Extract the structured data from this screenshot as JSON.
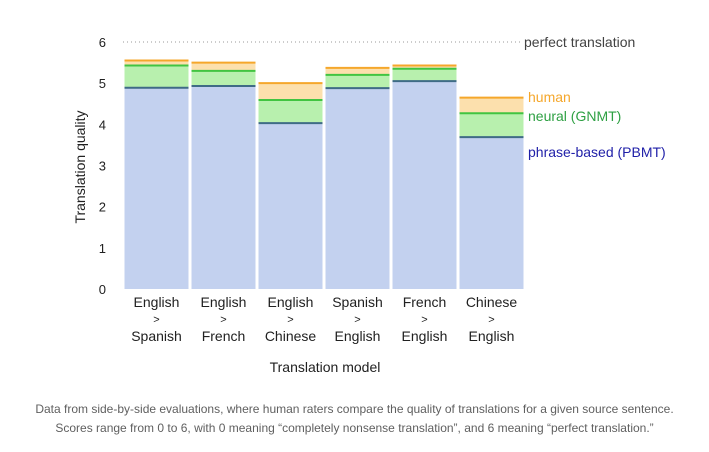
{
  "chart_data": {
    "type": "bar",
    "title": "",
    "xlabel": "Translation model",
    "ylabel": "Translation quality",
    "ylim": [
      0,
      6
    ],
    "yticks": [
      "0",
      "1",
      "2",
      "3",
      "4",
      "5",
      "6"
    ],
    "grid": false,
    "categories": [
      [
        "English",
        ">",
        "Spanish"
      ],
      [
        "English",
        ">",
        "French"
      ],
      [
        "English",
        ">",
        "Chinese"
      ],
      [
        "Spanish",
        ">",
        "English"
      ],
      [
        "French",
        ">",
        "English"
      ],
      [
        "Chinese",
        ">",
        "English"
      ]
    ],
    "series": [
      {
        "name": "phrase-based (PBMT)",
        "values": [
          4.89,
          4.93,
          4.03,
          4.88,
          5.05,
          3.69
        ],
        "fill": "#c3d1ef",
        "line": "#3f6b86",
        "label_color": "#1f1fa8"
      },
      {
        "name": "neural (GNMT)",
        "values": [
          5.43,
          5.3,
          4.59,
          5.2,
          5.35,
          4.27
        ],
        "fill": "#b8f0ae",
        "line": "#41c441",
        "label_color": "#2ea043"
      },
      {
        "name": "human",
        "values": [
          5.55,
          5.5,
          5.0,
          5.37,
          5.43,
          4.65
        ],
        "fill": "#fce0ad",
        "line": "#f5a72b",
        "label_color": "#f5a72b"
      }
    ],
    "reference_line": {
      "value": 6,
      "label": "perfect translation"
    },
    "legend": "right"
  },
  "caption": {
    "line1": "Data from side-by-side evaluations, where human raters compare the quality of translations for a given source sentence.",
    "line2": "Scores range from 0 to 6, with 0 meaning “completely nonsense translation”, and 6 meaning “perfect translation.”"
  }
}
